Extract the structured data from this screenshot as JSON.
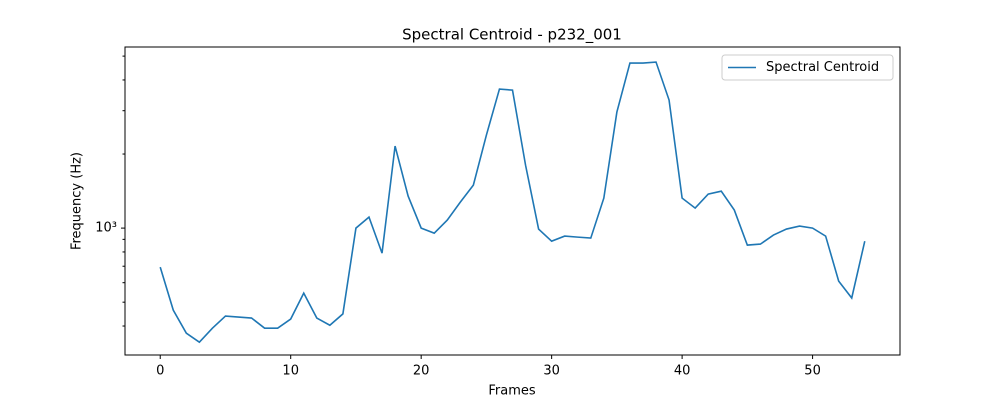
{
  "chart_data": {
    "type": "line",
    "title": "Spectral Centroid - p232_001",
    "xlabel": "Frames",
    "ylabel": "Frequency (Hz)",
    "x": [
      0,
      1,
      2,
      3,
      4,
      5,
      6,
      7,
      8,
      9,
      10,
      11,
      12,
      13,
      14,
      15,
      16,
      17,
      18,
      19,
      20,
      21,
      22,
      23,
      24,
      25,
      26,
      27,
      28,
      29,
      30,
      31,
      32,
      33,
      34,
      35,
      36,
      37,
      38,
      39,
      40,
      41,
      42,
      43,
      44,
      45,
      46,
      47,
      48,
      49,
      50,
      51,
      52,
      53,
      54
    ],
    "series": [
      {
        "name": "Spectral Centroid",
        "color": "#1f77b4",
        "values": [
          694,
          464,
          374,
          344,
          392,
          439,
          435,
          431,
          392,
          392,
          427,
          544,
          431,
          403,
          448,
          1000,
          1108,
          791,
          2155,
          1349,
          1000,
          954,
          1078,
          1275,
          1495,
          2389,
          3673,
          3637,
          1803,
          991,
          885,
          928,
          919,
          911,
          1324,
          2961,
          4686,
          4686,
          4730,
          3315,
          1324,
          1206,
          1375,
          1413,
          1184,
          853,
          861,
          937,
          991,
          1019,
          1000,
          928,
          609,
          520,
          885
        ]
      }
    ],
    "xlim": [
      -2.7,
      56.7
    ],
    "xticks": [
      0,
      10,
      20,
      30,
      40,
      50
    ],
    "ylim": [
      305,
      5445
    ],
    "log_y": true,
    "yticks": [
      {
        "value": 1000,
        "label": "10³"
      }
    ],
    "yminor_ticks": [
      400,
      500,
      600,
      700,
      800,
      900,
      2000,
      3000,
      4000,
      5000
    ],
    "legend": "upper right"
  }
}
